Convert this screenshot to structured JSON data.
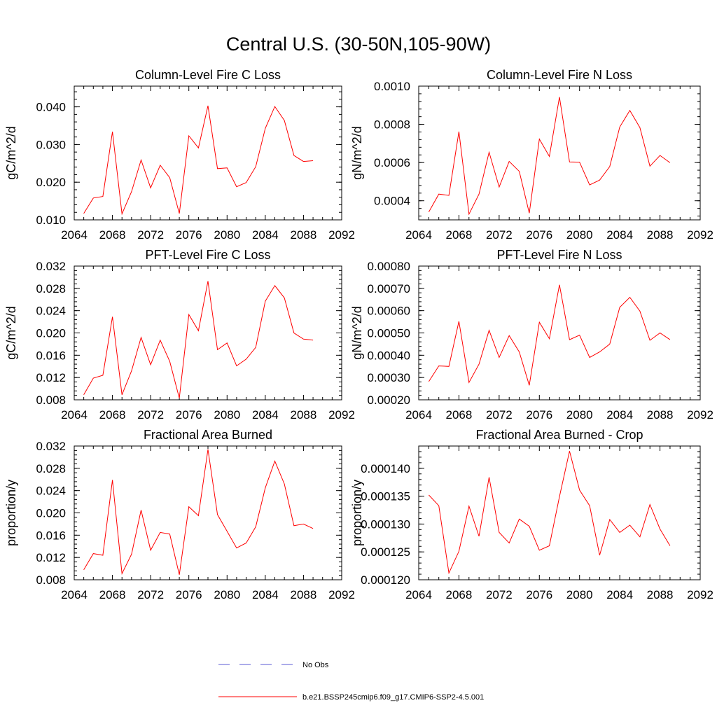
{
  "title": "Central U.S. (30-50N,105-90W)",
  "colors": {
    "model": "#ff0000",
    "obs": "#5a5ad6"
  },
  "legend": [
    {
      "label": "No Obs",
      "style": "dashed"
    },
    {
      "label": "b.e21.BSSP245cmip6.f09_g17.CMIP6-SSP2-4.5.001",
      "style": "solid"
    }
  ],
  "chart_data": [
    {
      "type": "line",
      "title": "Column-Level Fire C Loss",
      "ylabel": "gC/m^2/d",
      "xlim": [
        2064,
        2092
      ],
      "xticks": [
        "2064",
        "2068",
        "2072",
        "2076",
        "2080",
        "2084",
        "2088",
        "2092"
      ],
      "ylim": [
        0.01,
        0.0455
      ],
      "yticks": [
        "0.010",
        "0.020",
        "0.030",
        "0.040"
      ],
      "ytick_values": [
        0.01,
        0.02,
        0.03,
        0.04
      ],
      "x": [
        2065,
        2066,
        2067,
        2068,
        2069,
        2070,
        2071,
        2072,
        2073,
        2074,
        2075,
        2076,
        2077,
        2078,
        2079,
        2080,
        2081,
        2082,
        2083,
        2084,
        2085,
        2086,
        2087,
        2088,
        2089
      ],
      "values": [
        0.0117,
        0.0158,
        0.0162,
        0.0334,
        0.0116,
        0.0175,
        0.0259,
        0.0185,
        0.0245,
        0.0212,
        0.0117,
        0.0323,
        0.0291,
        0.0403,
        0.0236,
        0.0238,
        0.0188,
        0.0199,
        0.0241,
        0.0343,
        0.0401,
        0.0364,
        0.0271,
        0.0255,
        0.0257
      ]
    },
    {
      "type": "line",
      "title": "Column-Level Fire N Loss",
      "ylabel": "gN/m^2/d",
      "xlim": [
        2064,
        2092
      ],
      "xticks": [
        "2064",
        "2068",
        "2072",
        "2076",
        "2080",
        "2084",
        "2088",
        "2092"
      ],
      "ylim": [
        0.0003,
        0.001
      ],
      "yticks": [
        "0.0004",
        "0.0006",
        "0.0008",
        "0.0010"
      ],
      "ytick_values": [
        0.0004,
        0.0006,
        0.0008,
        0.001
      ],
      "x": [
        2065,
        2066,
        2067,
        2068,
        2069,
        2070,
        2071,
        2072,
        2073,
        2074,
        2075,
        2076,
        2077,
        2078,
        2079,
        2080,
        2081,
        2082,
        2083,
        2084,
        2085,
        2086,
        2087,
        2088,
        2089
      ],
      "values": [
        0.000341,
        0.000435,
        0.000428,
        0.000762,
        0.00033,
        0.000435,
        0.000654,
        0.000472,
        0.000606,
        0.000554,
        0.000335,
        0.000723,
        0.000632,
        0.000943,
        0.000603,
        0.000602,
        0.000483,
        0.000508,
        0.000579,
        0.000786,
        0.000873,
        0.000783,
        0.000581,
        0.000637,
        0.000599
      ]
    },
    {
      "type": "line",
      "title": "PFT-Level Fire C Loss",
      "ylabel": "gC/m^2/d",
      "xlim": [
        2064,
        2092
      ],
      "xticks": [
        "2064",
        "2068",
        "2072",
        "2076",
        "2080",
        "2084",
        "2088",
        "2092"
      ],
      "ylim": [
        0.008,
        0.032
      ],
      "yticks": [
        "0.008",
        "0.012",
        "0.016",
        "0.020",
        "0.024",
        "0.028",
        "0.032"
      ],
      "ytick_values": [
        0.008,
        0.012,
        0.016,
        0.02,
        0.024,
        0.028,
        0.032
      ],
      "x": [
        2065,
        2066,
        2067,
        2068,
        2069,
        2070,
        2071,
        2072,
        2073,
        2074,
        2075,
        2076,
        2077,
        2078,
        2079,
        2080,
        2081,
        2082,
        2083,
        2084,
        2085,
        2086,
        2087,
        2088,
        2089
      ],
      "values": [
        0.0089,
        0.0119,
        0.0124,
        0.0229,
        0.0089,
        0.0132,
        0.0192,
        0.0143,
        0.0187,
        0.0149,
        0.0083,
        0.0233,
        0.0204,
        0.0293,
        0.017,
        0.0182,
        0.0141,
        0.0153,
        0.0174,
        0.0257,
        0.0285,
        0.0263,
        0.02,
        0.0189,
        0.0187
      ]
    },
    {
      "type": "line",
      "title": "PFT-Level Fire N Loss",
      "ylabel": "gN/m^2/d",
      "xlim": [
        2064,
        2092
      ],
      "xticks": [
        "2064",
        "2068",
        "2072",
        "2076",
        "2080",
        "2084",
        "2088",
        "2092"
      ],
      "ylim": [
        0.0002,
        0.0008
      ],
      "yticks": [
        "0.00020",
        "0.00030",
        "0.00040",
        "0.00050",
        "0.00060",
        "0.00070",
        "0.00080"
      ],
      "ytick_values": [
        0.0002,
        0.0003,
        0.0004,
        0.0005,
        0.0006,
        0.0007,
        0.0008
      ],
      "x": [
        2065,
        2066,
        2067,
        2068,
        2069,
        2070,
        2071,
        2072,
        2073,
        2074,
        2075,
        2076,
        2077,
        2078,
        2079,
        2080,
        2081,
        2082,
        2083,
        2084,
        2085,
        2086,
        2087,
        2088,
        2089
      ],
      "values": [
        0.000282,
        0.000352,
        0.00035,
        0.000552,
        0.000278,
        0.00036,
        0.000512,
        0.00039,
        0.000488,
        0.000415,
        0.000265,
        0.000548,
        0.000474,
        0.000716,
        0.00047,
        0.00049,
        0.00039,
        0.000415,
        0.00045,
        0.000615,
        0.00066,
        0.000598,
        0.000467,
        0.0005,
        0.00047
      ]
    },
    {
      "type": "line",
      "title": "Fractional Area Burned",
      "ylabel": "proportion/y",
      "xlim": [
        2064,
        2092
      ],
      "xticks": [
        "2064",
        "2068",
        "2072",
        "2076",
        "2080",
        "2084",
        "2088",
        "2092"
      ],
      "ylim": [
        0.008,
        0.032
      ],
      "yticks": [
        "0.008",
        "0.012",
        "0.016",
        "0.020",
        "0.024",
        "0.028",
        "0.032"
      ],
      "ytick_values": [
        0.008,
        0.012,
        0.016,
        0.02,
        0.024,
        0.028,
        0.032
      ],
      "x": [
        2065,
        2066,
        2067,
        2068,
        2069,
        2070,
        2071,
        2072,
        2073,
        2074,
        2075,
        2076,
        2077,
        2078,
        2079,
        2080,
        2081,
        2082,
        2083,
        2084,
        2085,
        2086,
        2087,
        2088,
        2089
      ],
      "values": [
        0.0098,
        0.0127,
        0.0124,
        0.0259,
        0.0091,
        0.0126,
        0.0205,
        0.0133,
        0.0165,
        0.0162,
        0.0089,
        0.0211,
        0.0195,
        0.0314,
        0.0197,
        0.0167,
        0.0137,
        0.0146,
        0.0175,
        0.0245,
        0.0293,
        0.0252,
        0.0177,
        0.018,
        0.0172
      ]
    },
    {
      "type": "line",
      "title": "Fractional Area Burned - Crop",
      "ylabel": "proportion/y",
      "xlim": [
        2064,
        2092
      ],
      "xticks": [
        "2064",
        "2068",
        "2072",
        "2076",
        "2080",
        "2084",
        "2088",
        "2092"
      ],
      "ylim": [
        0.00012,
        0.000144
      ],
      "yticks": [
        "0.000120",
        "0.000125",
        "0.000130",
        "0.000135",
        "0.000140"
      ],
      "ytick_values": [
        0.00012,
        0.000125,
        0.00013,
        0.000135,
        0.00014
      ],
      "x": [
        2065,
        2066,
        2067,
        2068,
        2069,
        2070,
        2071,
        2072,
        2073,
        2074,
        2075,
        2076,
        2077,
        2078,
        2079,
        2080,
        2081,
        2082,
        2083,
        2084,
        2085,
        2086,
        2087,
        2088,
        2089
      ],
      "values": [
        0.0001352,
        0.0001333,
        0.0001212,
        0.0001251,
        0.0001332,
        0.0001278,
        0.0001384,
        0.0001285,
        0.0001266,
        0.0001309,
        0.0001296,
        0.0001253,
        0.0001261,
        0.0001349,
        0.0001431,
        0.0001361,
        0.0001333,
        0.0001244,
        0.0001308,
        0.0001285,
        0.0001298,
        0.0001277,
        0.0001335,
        0.0001291,
        0.0001261
      ]
    }
  ]
}
